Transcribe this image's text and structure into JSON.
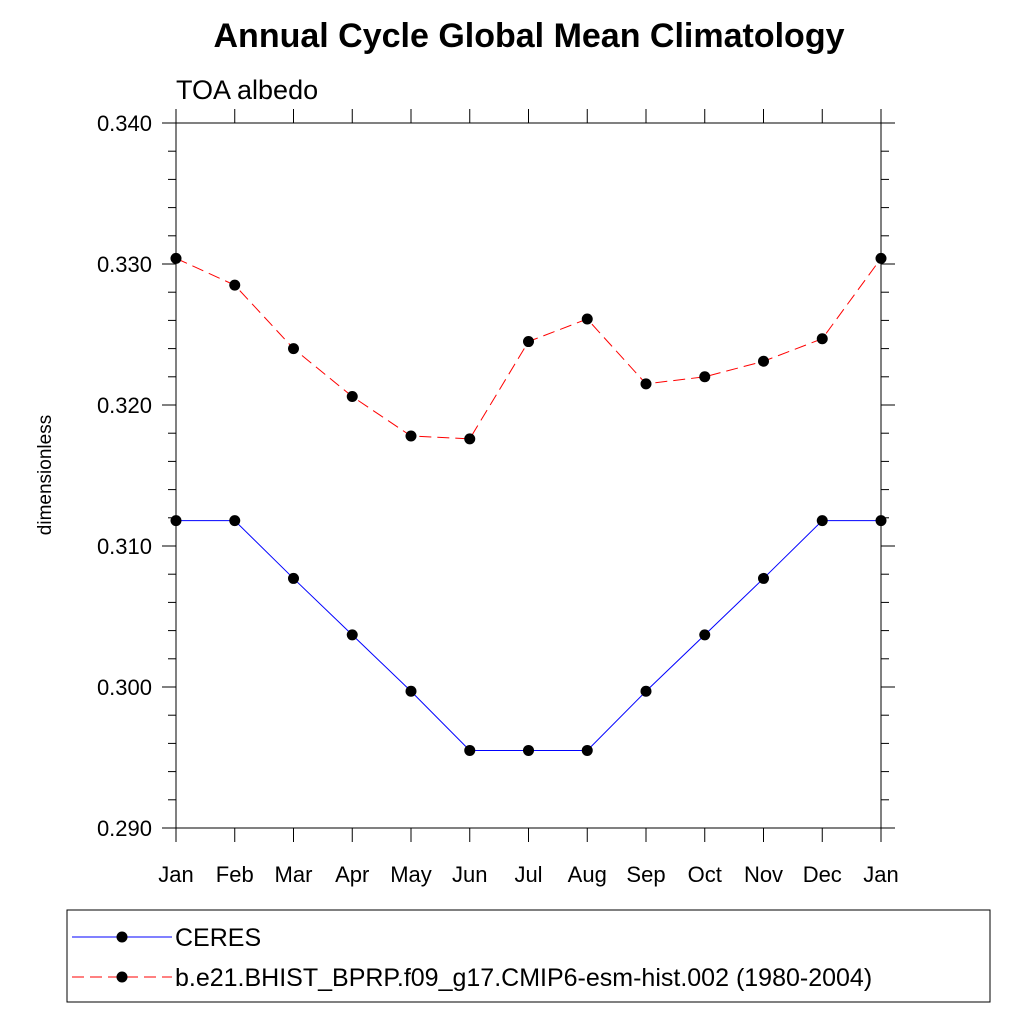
{
  "chart_data": {
    "type": "line",
    "title": "Annual Cycle Global Mean Climatology",
    "subtitle": "TOA albedo",
    "xlabel": "",
    "ylabel": "dimensionless",
    "categories": [
      "Jan",
      "Feb",
      "Mar",
      "Apr",
      "May",
      "Jun",
      "Jul",
      "Aug",
      "Sep",
      "Oct",
      "Nov",
      "Dec",
      "Jan"
    ],
    "ylim": [
      0.29,
      0.34
    ],
    "yticks": [
      "0.340",
      "0.330",
      "0.320",
      "0.310",
      "0.300",
      "0.290"
    ],
    "ytick_values": [
      0.34,
      0.33,
      0.32,
      0.31,
      0.3,
      0.29
    ],
    "minor_ytick_step": 0.002,
    "grid": false,
    "legend_position": "bottom",
    "series": [
      {
        "name": "CERES",
        "color": "#0000ff",
        "line_style": "solid",
        "marker": "filled-circle",
        "values": [
          0.3118,
          0.3118,
          0.3077,
          0.3037,
          0.2997,
          0.2955,
          0.2955,
          0.2955,
          0.2997,
          0.3037,
          0.3077,
          0.3118,
          0.3118
        ]
      },
      {
        "name": "b.e21.BHIST_BPRP.f09_g17.CMIP6-esm-hist.002 (1980-2004)",
        "color": "#ff0000",
        "line_style": "dashed",
        "marker": "filled-circle",
        "values": [
          0.3304,
          0.3285,
          0.324,
          0.3206,
          0.3178,
          0.3176,
          0.3245,
          0.3261,
          0.3215,
          0.322,
          0.3231,
          0.3247,
          0.3304
        ]
      }
    ]
  }
}
